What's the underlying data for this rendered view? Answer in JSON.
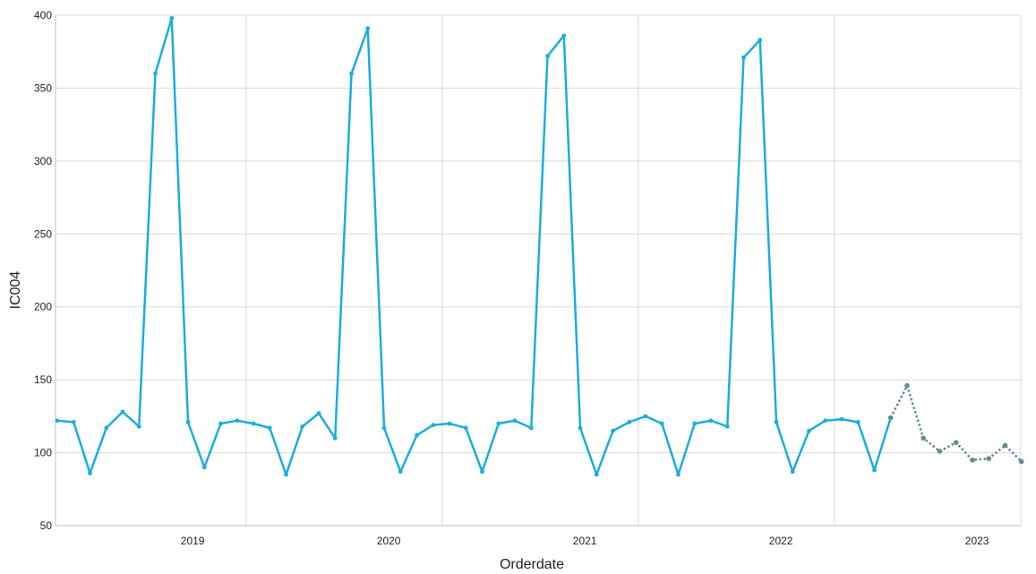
{
  "chart_data": {
    "type": "line",
    "title": "",
    "xlabel": "Orderdate",
    "ylabel": "IC004",
    "ylim": [
      50,
      400
    ],
    "y_ticks": [
      "50",
      "100",
      "150",
      "200",
      "250",
      "300",
      "350",
      "400"
    ],
    "x_ticks": [
      "2019",
      "2020",
      "2021",
      "2022",
      "2023"
    ],
    "grid": true,
    "legend": "none",
    "colors": {
      "actual": "#1aaedc",
      "forecast": "#5f8f8f",
      "grid": "#d9d9d9",
      "axis": "#bdbdbd"
    },
    "series": [
      {
        "style": "solid",
        "x": [
          "2018-07",
          "2018-08",
          "2018-09",
          "2018-10",
          "2018-11",
          "2018-12",
          "2019-01",
          "2019-02",
          "2019-03",
          "2019-04",
          "2019-05",
          "2019-06",
          "2019-07",
          "2019-08",
          "2019-09",
          "2019-10",
          "2019-11",
          "2019-12",
          "2020-01",
          "2020-02",
          "2020-03",
          "2020-04",
          "2020-05",
          "2020-06",
          "2020-07",
          "2020-08",
          "2020-09",
          "2020-10",
          "2020-11",
          "2020-12",
          "2021-01",
          "2021-02",
          "2021-03",
          "2021-04",
          "2021-05",
          "2021-06",
          "2021-07",
          "2021-08",
          "2021-09",
          "2021-10",
          "2021-11",
          "2021-12",
          "2022-01",
          "2022-02",
          "2022-03",
          "2022-04",
          "2022-05",
          "2022-06",
          "2022-07",
          "2022-08",
          "2022-09",
          "2022-10"
        ],
        "values": [
          122,
          121,
          86,
          117,
          128,
          118,
          360,
          398,
          121,
          90,
          120,
          122,
          120,
          117,
          85,
          118,
          127,
          110,
          360,
          391,
          117,
          87,
          112,
          119,
          120,
          117,
          87,
          120,
          122,
          117,
          372,
          386,
          117,
          85,
          115,
          121,
          125,
          120,
          85,
          120,
          122,
          118,
          371,
          383,
          121,
          87,
          115,
          122,
          123,
          121,
          88,
          124
        ]
      },
      {
        "style": "dashed",
        "x": [
          "2022-10",
          "2022-11",
          "2022-12",
          "2023-01",
          "2023-02",
          "2023-03",
          "2023-04",
          "2023-05",
          "2023-06"
        ],
        "values": [
          124,
          146,
          110,
          101,
          107,
          95,
          96,
          105,
          94
        ]
      }
    ]
  }
}
